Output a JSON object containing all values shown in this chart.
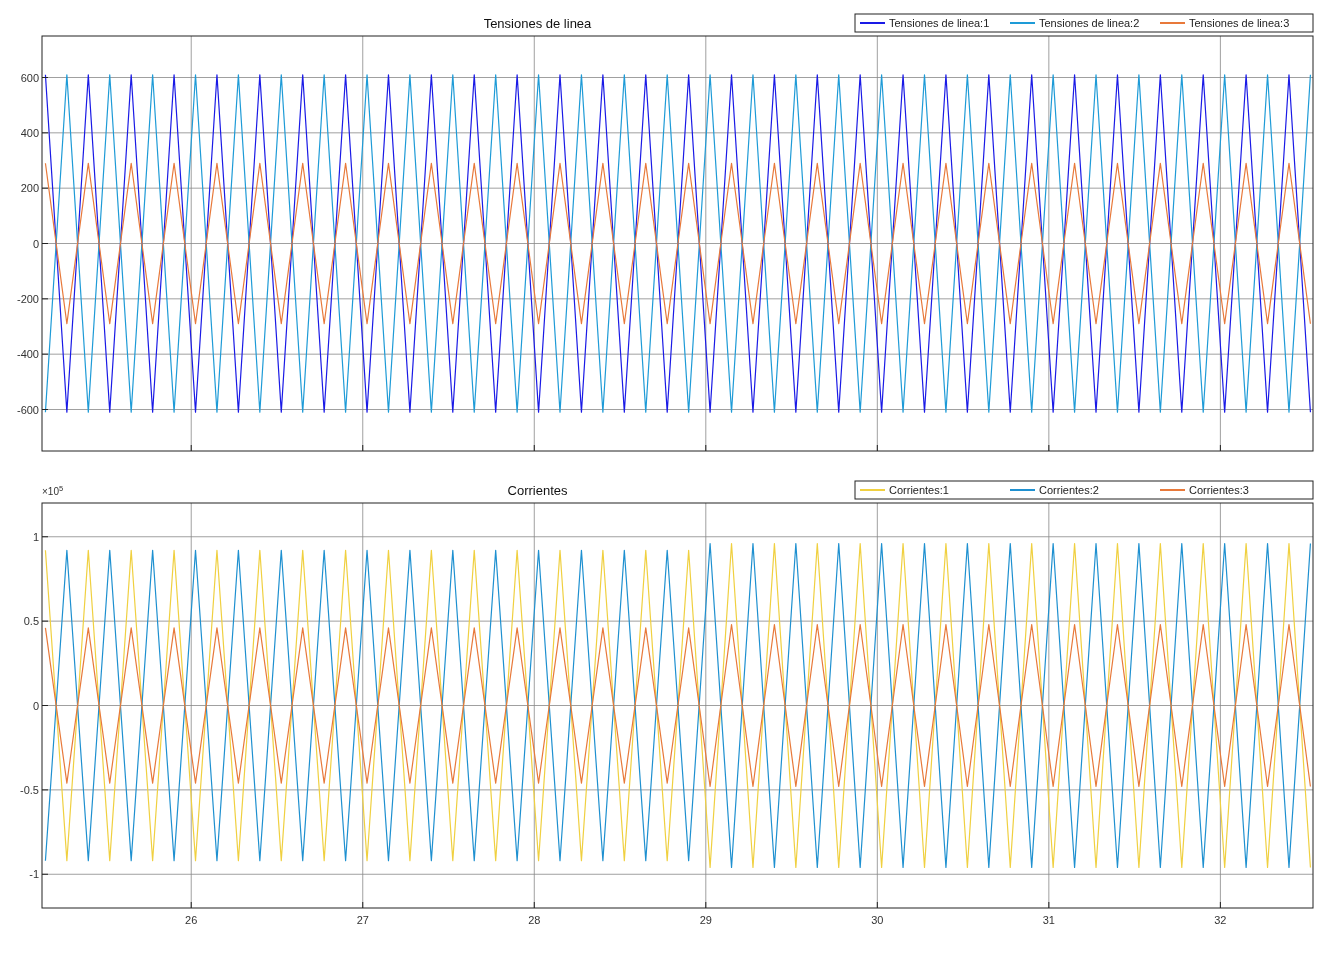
{
  "chart_data": [
    {
      "type": "line",
      "title": "Tensiones de linea",
      "xlim": [
        25.13,
        32.54
      ],
      "xticks": [
        26,
        27,
        28,
        29,
        30,
        31,
        32
      ],
      "ylim": [
        -750,
        750
      ],
      "yticks": [
        -600,
        -400,
        -200,
        0,
        200,
        400,
        600
      ],
      "tick_labels": "y",
      "grid": true,
      "legend": "top right",
      "line_style": "solid",
      "x": [
        25.15,
        25.275,
        25.4,
        25.525,
        25.65,
        25.775,
        25.9,
        26.025,
        26.15,
        26.275,
        26.4,
        26.525,
        26.65,
        26.775,
        26.9,
        27.025,
        27.15,
        27.275,
        27.4,
        27.525,
        27.65,
        27.775,
        27.9,
        28.025,
        28.15,
        28.275,
        28.4,
        28.525,
        28.65,
        28.775,
        28.9,
        29.025,
        29.15,
        29.275,
        29.4,
        29.525,
        29.65,
        29.775,
        29.9,
        30.025,
        30.15,
        30.275,
        30.4,
        30.525,
        30.65,
        30.775,
        30.9,
        31.025,
        31.15,
        31.275,
        31.4,
        31.525,
        31.65,
        31.775,
        31.9,
        32.025,
        32.15,
        32.275,
        32.4,
        32.525
      ],
      "series": [
        {
          "name": "Tensiones de linea:1",
          "color": "#1a1ae6",
          "values": [
            610,
            -610,
            610,
            -610,
            610,
            -610,
            610,
            -610,
            610,
            -610,
            610,
            -610,
            610,
            -610,
            610,
            -610,
            610,
            -610,
            610,
            -610,
            610,
            -610,
            610,
            -610,
            610,
            -610,
            610,
            -610,
            610,
            -610,
            610,
            -610,
            610,
            -610,
            610,
            -610,
            610,
            -610,
            610,
            -610,
            610,
            -610,
            610,
            -610,
            610,
            -610,
            610,
            -610,
            610,
            -610,
            610,
            -610,
            610,
            -610,
            610,
            -610,
            610,
            -610,
            610,
            -610
          ]
        },
        {
          "name": "Tensiones de linea:2",
          "color": "#1e9bd7",
          "values": [
            -610,
            610,
            -610,
            610,
            -610,
            610,
            -610,
            610,
            -610,
            610,
            -610,
            610,
            -610,
            610,
            -610,
            610,
            -610,
            610,
            -610,
            610,
            -610,
            610,
            -610,
            610,
            -610,
            610,
            -610,
            610,
            -610,
            610,
            -610,
            610,
            -610,
            610,
            -610,
            610,
            -610,
            610,
            -610,
            610,
            -610,
            610,
            -610,
            610,
            -610,
            610,
            -610,
            610,
            -610,
            610,
            -610,
            610,
            -610,
            610,
            -610,
            610,
            -610,
            610,
            -610,
            610
          ]
        },
        {
          "name": "Tensiones de linea:3",
          "color": "#e8793a",
          "values": [
            290,
            -290,
            290,
            -290,
            290,
            -290,
            290,
            -290,
            290,
            -290,
            290,
            -290,
            290,
            -290,
            290,
            -290,
            290,
            -290,
            290,
            -290,
            290,
            -290,
            290,
            -290,
            290,
            -290,
            290,
            -290,
            290,
            -290,
            290,
            -290,
            290,
            -290,
            290,
            -290,
            290,
            -290,
            290,
            -290,
            290,
            -290,
            290,
            -290,
            290,
            -290,
            290,
            -290,
            290,
            -290,
            290,
            -290,
            290,
            -290,
            290,
            -290,
            290,
            -290,
            290,
            -290
          ]
        }
      ]
    },
    {
      "type": "line",
      "title": "Corrientes",
      "annotations": [
        "×10$^{5}$"
      ],
      "xlim": [
        25.13,
        32.54
      ],
      "xticks": [
        26,
        27,
        28,
        29,
        30,
        31,
        32
      ],
      "ylim": [
        -1.2,
        1.2
      ],
      "yticks": [
        -1,
        -0.5,
        0,
        0.5,
        1
      ],
      "grid": true,
      "legend": "top right",
      "line_style": "solid",
      "x": [
        25.15,
        25.275,
        25.4,
        25.525,
        25.65,
        25.775,
        25.9,
        26.025,
        26.15,
        26.275,
        26.4,
        26.525,
        26.65,
        26.775,
        26.9,
        27.025,
        27.15,
        27.275,
        27.4,
        27.525,
        27.65,
        27.775,
        27.9,
        28.025,
        28.15,
        28.275,
        28.4,
        28.525,
        28.65,
        28.775,
        28.9,
        29.025,
        29.15,
        29.275,
        29.4,
        29.525,
        29.65,
        29.775,
        29.9,
        30.025,
        30.15,
        30.275,
        30.4,
        30.525,
        30.65,
        30.775,
        30.9,
        31.025,
        31.15,
        31.275,
        31.4,
        31.525,
        31.65,
        31.775,
        31.9,
        32.025,
        32.15,
        32.275,
        32.4,
        32.525
      ],
      "series": [
        {
          "name": "Corrientes:1",
          "color": "#f0d040",
          "values": [
            0.92,
            -0.92,
            0.92,
            -0.92,
            0.92,
            -0.92,
            0.92,
            -0.92,
            0.92,
            -0.92,
            0.92,
            -0.92,
            0.92,
            -0.92,
            0.92,
            -0.92,
            0.92,
            -0.92,
            0.92,
            -0.92,
            0.92,
            -0.92,
            0.92,
            -0.92,
            0.92,
            -0.92,
            0.92,
            -0.92,
            0.92,
            -0.92,
            0.92,
            -0.96,
            0.96,
            -0.96,
            0.96,
            -0.96,
            0.96,
            -0.96,
            0.96,
            -0.96,
            0.96,
            -0.96,
            0.96,
            -0.96,
            0.96,
            -0.96,
            0.96,
            -0.96,
            0.96,
            -0.96,
            0.96,
            -0.96,
            0.96,
            -0.96,
            0.96,
            -0.96,
            0.96,
            -0.96,
            0.96,
            -0.96
          ]
        },
        {
          "name": "Corrientes:2",
          "color": "#1e90d0",
          "values": [
            -0.92,
            0.92,
            -0.92,
            0.92,
            -0.92,
            0.92,
            -0.92,
            0.92,
            -0.92,
            0.92,
            -0.92,
            0.92,
            -0.92,
            0.92,
            -0.92,
            0.92,
            -0.92,
            0.92,
            -0.92,
            0.92,
            -0.92,
            0.92,
            -0.92,
            0.92,
            -0.92,
            0.92,
            -0.92,
            0.92,
            -0.92,
            0.92,
            -0.92,
            0.96,
            -0.96,
            0.96,
            -0.96,
            0.96,
            -0.96,
            0.96,
            -0.96,
            0.96,
            -0.96,
            0.96,
            -0.96,
            0.96,
            -0.96,
            0.96,
            -0.96,
            0.96,
            -0.96,
            0.96,
            -0.96,
            0.96,
            -0.96,
            0.96,
            -0.96,
            0.96,
            -0.96,
            0.96,
            -0.96,
            0.96
          ]
        },
        {
          "name": "Corrientes:3",
          "color": "#e8793a",
          "values": [
            0.46,
            -0.46,
            0.46,
            -0.46,
            0.46,
            -0.46,
            0.46,
            -0.46,
            0.46,
            -0.46,
            0.46,
            -0.46,
            0.46,
            -0.46,
            0.46,
            -0.46,
            0.46,
            -0.46,
            0.46,
            -0.46,
            0.46,
            -0.46,
            0.46,
            -0.46,
            0.46,
            -0.46,
            0.46,
            -0.46,
            0.46,
            -0.46,
            0.46,
            -0.48,
            0.48,
            -0.48,
            0.48,
            -0.48,
            0.48,
            -0.48,
            0.48,
            -0.48,
            0.48,
            -0.48,
            0.48,
            -0.48,
            0.48,
            -0.48,
            0.48,
            -0.48,
            0.48,
            -0.48,
            0.48,
            -0.48,
            0.48,
            -0.48,
            0.48,
            -0.48,
            0.48,
            -0.48,
            0.48,
            -0.48
          ]
        }
      ]
    }
  ]
}
